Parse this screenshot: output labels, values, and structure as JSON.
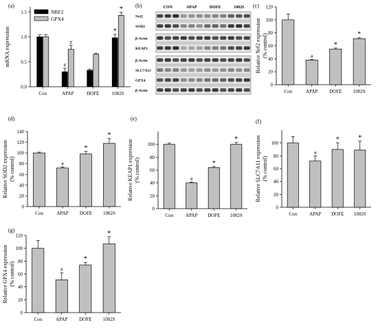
{
  "panels": [
    {
      "letter": "(a)"
    },
    {
      "letter": "(b)"
    },
    {
      "letter": "(c)"
    },
    {
      "letter": "(d)"
    },
    {
      "letter": "(e)"
    },
    {
      "letter": "(f)"
    },
    {
      "letter": "(g)"
    }
  ],
  "blot": {
    "columns": [
      "CON",
      "APAP",
      "DOFE",
      "1002S"
    ],
    "rows": [
      {
        "label": "Nrf2",
        "intensity": [
          0.9,
          0.45,
          0.5,
          0.75
        ]
      },
      {
        "label": "SOD2",
        "intensity": [
          0.85,
          0.5,
          0.65,
          0.9
        ]
      },
      {
        "label": "β-Actin",
        "intensity": [
          0.85,
          0.85,
          0.85,
          0.85
        ]
      },
      {
        "label": "KEAP1",
        "intensity": [
          0.9,
          0.35,
          0.55,
          0.85
        ]
      },
      {
        "label": "β-Actin",
        "intensity": [
          0.85,
          0.85,
          0.85,
          0.85
        ]
      },
      {
        "label": "SLC7A11",
        "intensity": [
          0.55,
          0.4,
          0.45,
          0.5
        ]
      },
      {
        "label": "GPX4",
        "intensity": [
          0.8,
          0.5,
          0.65,
          0.85
        ]
      },
      {
        "label": "β-Actin",
        "intensity": [
          0.85,
          0.85,
          0.85,
          0.85
        ]
      }
    ]
  },
  "chart_data": [
    {
      "panel": "(a)",
      "type": "bar",
      "categories": [
        "Con",
        "APAP",
        "DOFE",
        "1002S"
      ],
      "series": [
        {
          "name": "NRF2",
          "values": [
            1.0,
            0.3,
            0.33,
            0.98
          ],
          "errors": [
            0.04,
            0.07,
            0.02,
            0.07
          ],
          "marks": [
            "",
            "#",
            "",
            "*"
          ],
          "color": "#000000"
        },
        {
          "name": "GPX4",
          "values": [
            1.0,
            0.75,
            0.65,
            1.43
          ],
          "errors": [
            0.04,
            0.08,
            0.02,
            0.06
          ],
          "marks": [
            "",
            "#",
            "",
            "*"
          ],
          "color": "#c0c0c0"
        }
      ],
      "ylabel": "mRNA expression",
      "ylim": [
        0,
        1.6
      ],
      "yticks": [
        "0.0",
        "0.5",
        "1.0",
        "1.5"
      ],
      "legend": "top-left"
    },
    {
      "panel": "(c)",
      "type": "bar",
      "categories": [
        "Con",
        "APAP",
        "DOFE",
        "1002S"
      ],
      "values": [
        100,
        38,
        55,
        71
      ],
      "errors": [
        9,
        1,
        1.5,
        1.5
      ],
      "marks": [
        "",
        "#",
        "*",
        "*"
      ],
      "ylabel": [
        "Relative Nrf2 expression",
        "(% control)"
      ],
      "ylim": [
        0,
        120
      ],
      "yticks": [
        "0",
        "20",
        "40",
        "60",
        "80",
        "100",
        "120"
      ]
    },
    {
      "panel": "(d)",
      "type": "bar",
      "categories": [
        "Con",
        "APAP",
        "DOFE",
        "1002S"
      ],
      "values": [
        100,
        72,
        98,
        118
      ],
      "errors": [
        1.5,
        2,
        5,
        9
      ],
      "marks": [
        "",
        "#",
        "*",
        "*"
      ],
      "ylabel": [
        "Relative SOD2 expression",
        "(% control)"
      ],
      "ylim": [
        0,
        140
      ],
      "yticks": [
        "0",
        "20",
        "40",
        "60",
        "80",
        "100",
        "120",
        "140"
      ]
    },
    {
      "panel": "(e)",
      "type": "bar",
      "categories": [
        "Con",
        "APAP",
        "DOFE",
        "1002S"
      ],
      "values": [
        100,
        40,
        64,
        100
      ],
      "errors": [
        2,
        1.5,
        1.5,
        3
      ],
      "marks": [
        "",
        "#",
        "*",
        "*"
      ],
      "ylabel": [
        "Relative KEAP1 expression",
        "(% control)"
      ],
      "ylim": [
        0,
        120
      ],
      "yticks": [
        "0",
        "20",
        "40",
        "60",
        "80",
        "100"
      ]
    },
    {
      "panel": "(f)",
      "type": "bar",
      "categories": [
        "Con",
        "APAP",
        "DOFE",
        "1002S"
      ],
      "values": [
        100,
        72,
        90,
        89
      ],
      "errors": [
        10,
        8,
        10,
        14
      ],
      "marks": [
        "",
        "#",
        "*",
        "*"
      ],
      "ylabel": [
        "Relative SLC7A11 expression",
        "(% control)"
      ],
      "ylim": [
        0,
        120
      ],
      "yticks": [
        "0",
        "20",
        "40",
        "60",
        "80",
        "100"
      ]
    },
    {
      "panel": "(g)",
      "type": "bar",
      "categories": [
        "Con",
        "APAP",
        "DOFE",
        "1002S"
      ],
      "values": [
        100,
        51,
        74,
        107
      ],
      "errors": [
        12,
        11,
        4,
        11
      ],
      "marks": [
        "",
        "#",
        "*",
        "*"
      ],
      "ylabel": [
        "Relative GPX4 expression",
        "(% control)"
      ],
      "ylim": [
        0,
        120
      ],
      "yticks": [
        "0",
        "20",
        "40",
        "60",
        "80",
        "100",
        "120"
      ]
    }
  ]
}
